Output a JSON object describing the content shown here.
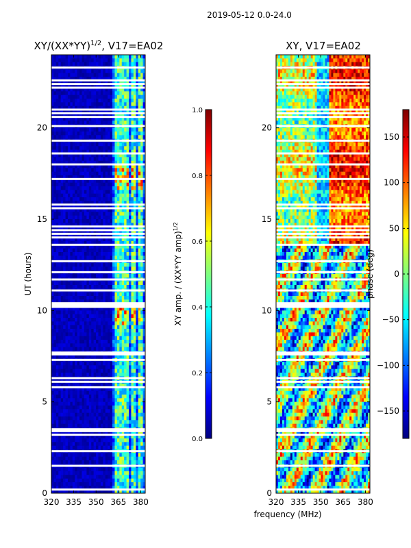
{
  "suptitle": "2019-05-12 0.0-24.0",
  "colors": {
    "jet": [
      "#00007f",
      "#0000ff",
      "#007fff",
      "#00ffff",
      "#7fff7f",
      "#ffff00",
      "#ff7f00",
      "#ff0000",
      "#7f0000"
    ],
    "background": "#ffffff"
  },
  "chart_data": [
    {
      "type": "heatmap",
      "title_main": "XY/(XX*YY)",
      "title_sup": "1/2",
      "title_suffix": ", V17=EA02",
      "xlabel": "",
      "ylabel": "UT (hours)",
      "xlim": [
        320,
        383
      ],
      "ylim": [
        0,
        24
      ],
      "xticks": [
        "320",
        "335",
        "350",
        "365",
        "380"
      ],
      "yticks": [
        "0",
        "5",
        "10",
        "15",
        "20"
      ],
      "value_range": [
        0.0,
        1.0
      ],
      "active_bands_mhz": [
        [
          363,
          367
        ],
        [
          368,
          372
        ],
        [
          373.5,
          377
        ],
        [
          378,
          382
        ]
      ],
      "flagged_hours": [
        0.2,
        1.5,
        2.3,
        3.2,
        3.4,
        3.5,
        5.8,
        6.1,
        6.3,
        7.3,
        7.6,
        7.7,
        10.2,
        10.3,
        10.4,
        11.1,
        11.7,
        12.1,
        12.7,
        13.6,
        14.0,
        14.2,
        14.4,
        14.6,
        15.6,
        15.8,
        17.2,
        18.0,
        18.6,
        19.3,
        20.1,
        20.6,
        20.8,
        21.0,
        22.2,
        22.4,
        22.6,
        23.3
      ],
      "colorbar": {
        "label_main": "XY amp. / (XX*YY amp)",
        "label_sup": "1/2",
        "ticks": [
          "0.0",
          "0.2",
          "0.4",
          "0.6",
          "0.8",
          "1.0"
        ],
        "values": [
          0.0,
          0.2,
          0.4,
          0.6,
          0.8,
          1.0
        ]
      }
    },
    {
      "type": "heatmap",
      "title": "XY, V17=EA02",
      "xlabel": "frequency (MHz)",
      "ylabel": "",
      "xlim": [
        320,
        383
      ],
      "ylim": [
        0,
        24
      ],
      "xticks": [
        "320",
        "335",
        "350",
        "365",
        "380"
      ],
      "yticks": [
        "0",
        "5",
        "10",
        "15",
        "20"
      ],
      "value_range": [
        -180,
        180
      ],
      "flagged_hours": [
        0.2,
        1.5,
        2.3,
        3.2,
        3.4,
        3.5,
        5.8,
        6.1,
        6.3,
        7.3,
        7.6,
        7.7,
        10.2,
        10.3,
        10.4,
        11.1,
        11.7,
        12.1,
        12.7,
        13.6,
        14.0,
        14.2,
        14.4,
        14.6,
        15.6,
        15.8,
        17.2,
        18.0,
        18.6,
        19.3,
        20.1,
        20.6,
        20.8,
        21.0,
        22.2,
        22.4,
        22.6,
        23.3
      ],
      "colorbar": {
        "label": "phase (deg)",
        "ticks": [
          "−150",
          "−100",
          "−50",
          "0",
          "50",
          "100",
          "150"
        ],
        "values": [
          -150,
          -100,
          -50,
          0,
          50,
          100,
          150
        ],
        "range": [
          -180,
          180
        ]
      }
    }
  ]
}
